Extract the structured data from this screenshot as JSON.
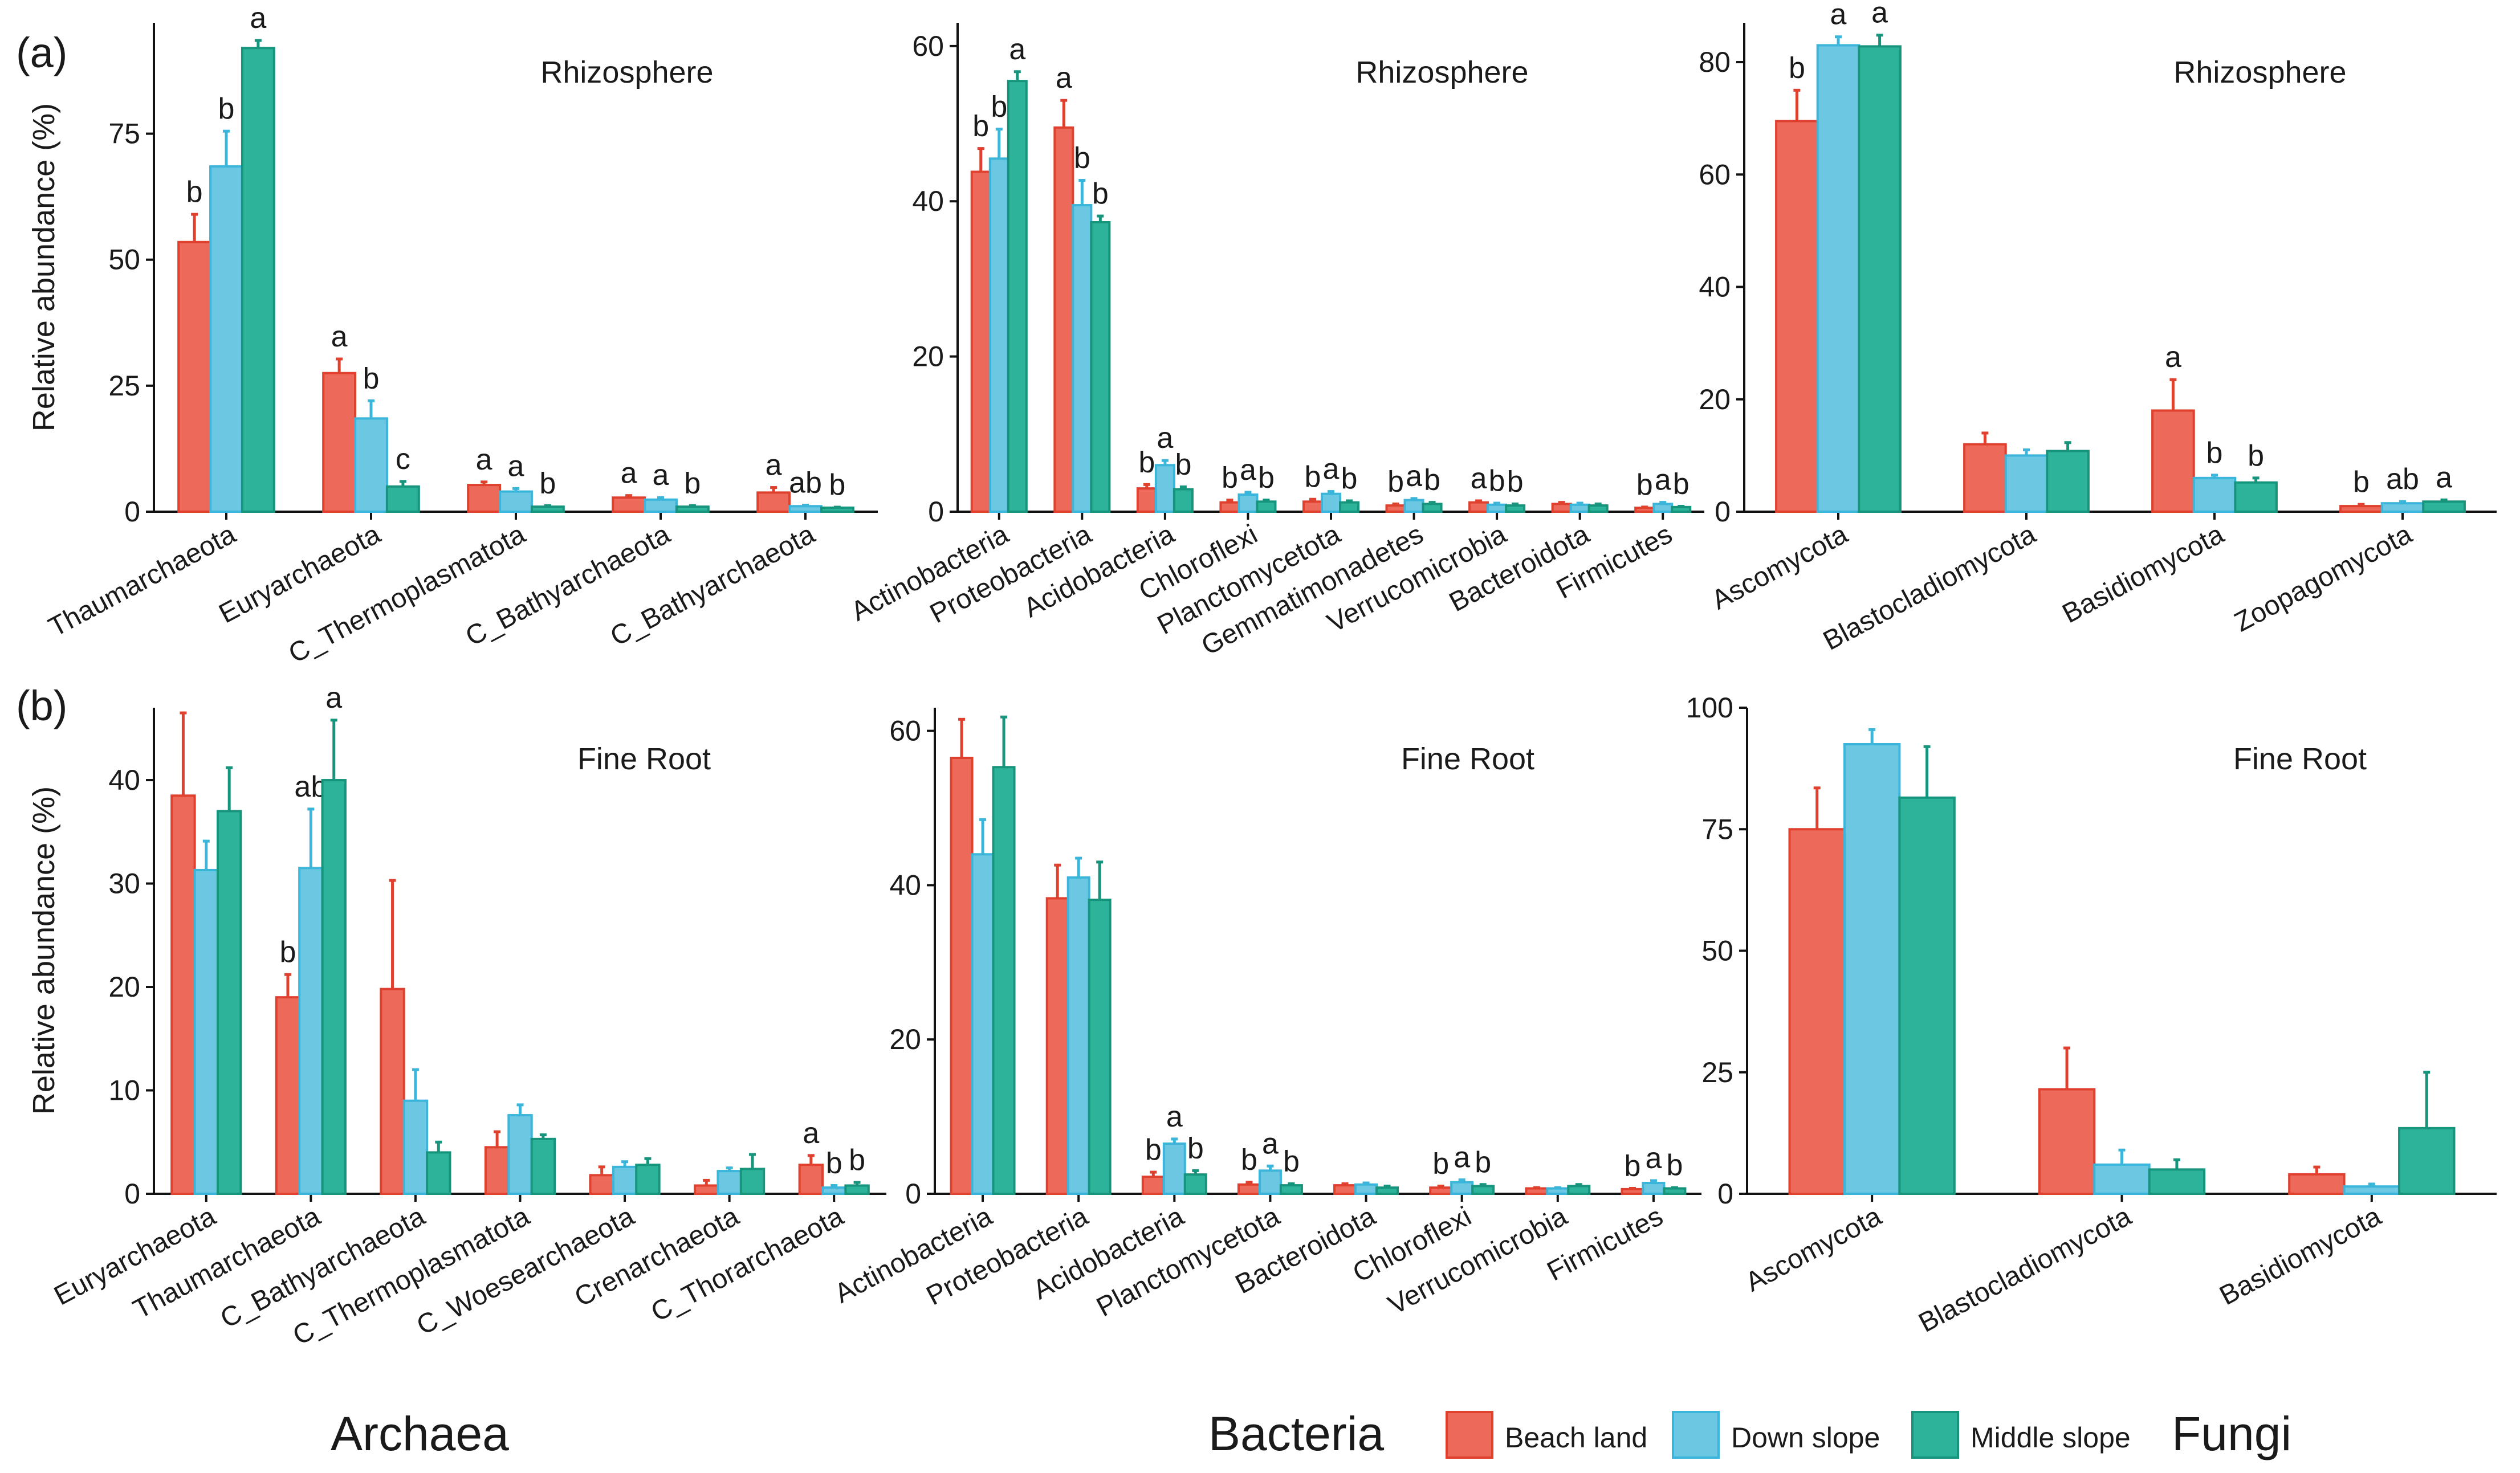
{
  "figure": {
    "row_labels": [
      "(a)",
      "(b)"
    ],
    "group_labels": [
      "Archaea",
      "Bacteria",
      "Fungi"
    ],
    "y_axis_label": "Relative abundance (%)",
    "legend": [
      {
        "name": "Beach land",
        "color": "#ED6A5A"
      },
      {
        "name": "Down slope",
        "color": "#6CC8E2"
      },
      {
        "name": "Middle slope",
        "color": "#2DB39A"
      }
    ],
    "stroke_colors": [
      "#E0402E",
      "#3BB5DA",
      "#16957C"
    ]
  },
  "chart_data": [
    {
      "type": "bar",
      "title": "Rhizosphere",
      "row": "(a)",
      "group": "Archaea",
      "ylabel": "Relative abundance (%)",
      "ylim": [
        0,
        97
      ],
      "yticks": [
        0,
        25,
        50,
        75
      ],
      "categories": [
        "Thaumarchaeota",
        "Euryarchaeota",
        "C_Thermoplasmatota",
        "C_Bathyarchaeota",
        "C_Bathyarchaeota"
      ],
      "series": [
        {
          "name": "Beach land",
          "values": [
            53.5,
            27.5,
            5.3,
            2.8,
            3.8
          ],
          "errors": [
            5.5,
            2.8,
            0.6,
            0.4,
            1.0
          ],
          "letters": [
            "b",
            "a",
            "a",
            "a",
            "a"
          ]
        },
        {
          "name": "Down slope",
          "values": [
            68.5,
            18.5,
            4.0,
            2.4,
            1.1
          ],
          "errors": [
            7.0,
            3.5,
            0.6,
            0.4,
            0.2
          ],
          "letters": [
            "b",
            "b",
            "a",
            "a",
            "ab"
          ]
        },
        {
          "name": "Middle slope",
          "values": [
            92.0,
            5.0,
            1.0,
            1.0,
            0.8
          ],
          "errors": [
            1.5,
            1.0,
            0.2,
            0.2,
            0.1
          ],
          "letters": [
            "a",
            "c",
            "b",
            "b",
            "b"
          ]
        }
      ]
    },
    {
      "type": "bar",
      "title": "Rhizosphere",
      "row": "(a)",
      "group": "Bacteria",
      "ylabel": "",
      "ylim": [
        0,
        63
      ],
      "yticks": [
        0,
        20,
        40,
        60
      ],
      "categories": [
        "Actinobacteria",
        "Proteobacteria",
        "Acidobacteria",
        "Chloroflexi",
        "Planctomycetota",
        "Gemmatimonadetes",
        "Verrucomicrobia",
        "Bacteroidota",
        "Firmicutes"
      ],
      "series": [
        {
          "name": "Beach land",
          "values": [
            43.8,
            49.5,
            3.0,
            1.2,
            1.3,
            0.8,
            1.2,
            1.0,
            0.5
          ],
          "errors": [
            3.0,
            3.5,
            0.5,
            0.3,
            0.3,
            0.2,
            0.2,
            0.2,
            0.1
          ],
          "letters": [
            "b",
            "a",
            "b",
            "b",
            "b",
            "b",
            "a",
            "",
            "b"
          ]
        },
        {
          "name": "Down slope",
          "values": [
            45.5,
            39.5,
            6.0,
            2.2,
            2.3,
            1.5,
            0.9,
            0.9,
            1.0
          ],
          "errors": [
            3.8,
            3.2,
            0.6,
            0.3,
            0.3,
            0.2,
            0.2,
            0.2,
            0.2
          ],
          "letters": [
            "b",
            "b",
            "a",
            "a",
            "a",
            "a",
            "b",
            "",
            "a"
          ]
        },
        {
          "name": "Middle slope",
          "values": [
            55.5,
            37.3,
            2.9,
            1.3,
            1.2,
            1.0,
            0.8,
            0.8,
            0.6
          ],
          "errors": [
            1.2,
            0.8,
            0.3,
            0.2,
            0.2,
            0.2,
            0.2,
            0.2,
            0.1
          ],
          "letters": [
            "a",
            "b",
            "b",
            "b",
            "b",
            "b",
            "b",
            "",
            "b"
          ]
        }
      ]
    },
    {
      "type": "bar",
      "title": "Rhizosphere",
      "row": "(a)",
      "group": "Fungi",
      "ylabel": "",
      "ylim": [
        0,
        87
      ],
      "yticks": [
        0,
        20,
        40,
        60,
        80
      ],
      "categories": [
        "Ascomycota",
        "Blastocladiomycota",
        "Basidiomycota",
        "Zoopagomycota"
      ],
      "series": [
        {
          "name": "Beach land",
          "values": [
            69.5,
            12.0,
            18.0,
            1.0
          ],
          "errors": [
            5.5,
            2.0,
            5.5,
            0.3
          ],
          "letters": [
            "b",
            "",
            "a",
            "b"
          ]
        },
        {
          "name": "Down slope",
          "values": [
            83.0,
            10.0,
            6.0,
            1.5
          ],
          "errors": [
            1.5,
            1.0,
            0.5,
            0.3
          ],
          "letters": [
            "a",
            "",
            "b",
            "ab"
          ]
        },
        {
          "name": "Middle slope",
          "values": [
            82.8,
            10.8,
            5.2,
            1.8
          ],
          "errors": [
            2.0,
            1.5,
            0.8,
            0.3
          ],
          "letters": [
            "a",
            "",
            "b",
            "a"
          ]
        }
      ]
    },
    {
      "type": "bar",
      "title": "Fine Root",
      "row": "(b)",
      "group": "Archaea",
      "ylabel": "Relative abundance (%)",
      "ylim": [
        0,
        47
      ],
      "yticks": [
        0,
        10,
        20,
        30,
        40
      ],
      "categories": [
        "Euryarchaeota",
        "Thaumarchaeota",
        "C_Bathyarchaeota",
        "C_Thermoplasmatota",
        "C_Woesearchaeota",
        "Crenarchaeota",
        "C_Thorarchaeota"
      ],
      "series": [
        {
          "name": "Beach land",
          "values": [
            38.5,
            19.0,
            19.8,
            4.5,
            1.8,
            0.8,
            2.8
          ],
          "errors": [
            8.0,
            2.2,
            10.5,
            1.5,
            0.8,
            0.5,
            0.9
          ],
          "letters": [
            "",
            "b",
            "",
            "",
            "",
            "",
            "a"
          ]
        },
        {
          "name": "Down slope",
          "values": [
            31.3,
            31.5,
            9.0,
            7.6,
            2.6,
            2.2,
            0.6
          ],
          "errors": [
            2.8,
            5.7,
            3.0,
            1.0,
            0.5,
            0.3,
            0.2
          ],
          "letters": [
            "",
            "ab",
            "",
            "",
            "",
            "",
            "b"
          ]
        },
        {
          "name": "Middle slope",
          "values": [
            37.0,
            40.0,
            4.0,
            5.3,
            2.8,
            2.4,
            0.8
          ],
          "errors": [
            4.2,
            5.8,
            1.0,
            0.4,
            0.6,
            1.4,
            0.3
          ],
          "letters": [
            "",
            "a",
            "",
            "",
            "",
            "",
            "b"
          ]
        }
      ]
    },
    {
      "type": "bar",
      "title": "Fine Root",
      "row": "(b)",
      "group": "Bacteria",
      "ylabel": "",
      "ylim": [
        0,
        63
      ],
      "yticks": [
        0,
        20,
        40,
        60
      ],
      "categories": [
        "Actinobacteria",
        "Proteobacteria",
        "Acidobacteria",
        "Planctomycetota",
        "Bacteroidota",
        "Chloroflexi",
        "Verrucomicrobia",
        "Firmicutes"
      ],
      "series": [
        {
          "name": "Beach land",
          "values": [
            56.5,
            38.3,
            2.2,
            1.2,
            1.1,
            0.8,
            0.7,
            0.6
          ],
          "errors": [
            5.0,
            4.3,
            0.6,
            0.3,
            0.2,
            0.2,
            0.1,
            0.1
          ],
          "letters": [
            "",
            "",
            "b",
            "b",
            "",
            "b",
            "",
            "b"
          ]
        },
        {
          "name": "Down slope",
          "values": [
            44.0,
            41.0,
            6.5,
            3.0,
            1.2,
            1.5,
            0.7,
            1.4
          ],
          "errors": [
            4.5,
            2.5,
            0.6,
            0.6,
            0.2,
            0.3,
            0.1,
            0.3
          ],
          "letters": [
            "",
            "",
            "a",
            "a",
            "",
            "a",
            "",
            "a"
          ]
        },
        {
          "name": "Middle slope",
          "values": [
            55.3,
            38.1,
            2.5,
            1.1,
            0.8,
            1.0,
            1.0,
            0.7
          ],
          "errors": [
            6.5,
            4.9,
            0.5,
            0.2,
            0.2,
            0.2,
            0.2,
            0.1
          ],
          "letters": [
            "",
            "",
            "b",
            "b",
            "",
            "b",
            "",
            "b"
          ]
        }
      ]
    },
    {
      "type": "bar",
      "title": "Fine Root",
      "row": "(b)",
      "group": "Fungi",
      "ylabel": "",
      "ylim": [
        0,
        100
      ],
      "yticks": [
        0,
        25,
        50,
        75,
        100
      ],
      "categories": [
        "Ascomycota",
        "Blastocladiomycota",
        "Basidiomycota"
      ],
      "series": [
        {
          "name": "Beach land",
          "values": [
            75.0,
            21.5,
            4.0
          ],
          "errors": [
            8.5,
            8.5,
            1.5
          ],
          "letters": [
            "",
            "",
            ""
          ]
        },
        {
          "name": "Down slope",
          "values": [
            92.5,
            6.0,
            1.5
          ],
          "errors": [
            3.0,
            3.0,
            0.5
          ],
          "letters": [
            "",
            "",
            ""
          ]
        },
        {
          "name": "Middle slope",
          "values": [
            81.5,
            5.0,
            13.5
          ],
          "errors": [
            10.5,
            2.0,
            11.5
          ],
          "letters": [
            "",
            "",
            ""
          ]
        }
      ]
    }
  ]
}
